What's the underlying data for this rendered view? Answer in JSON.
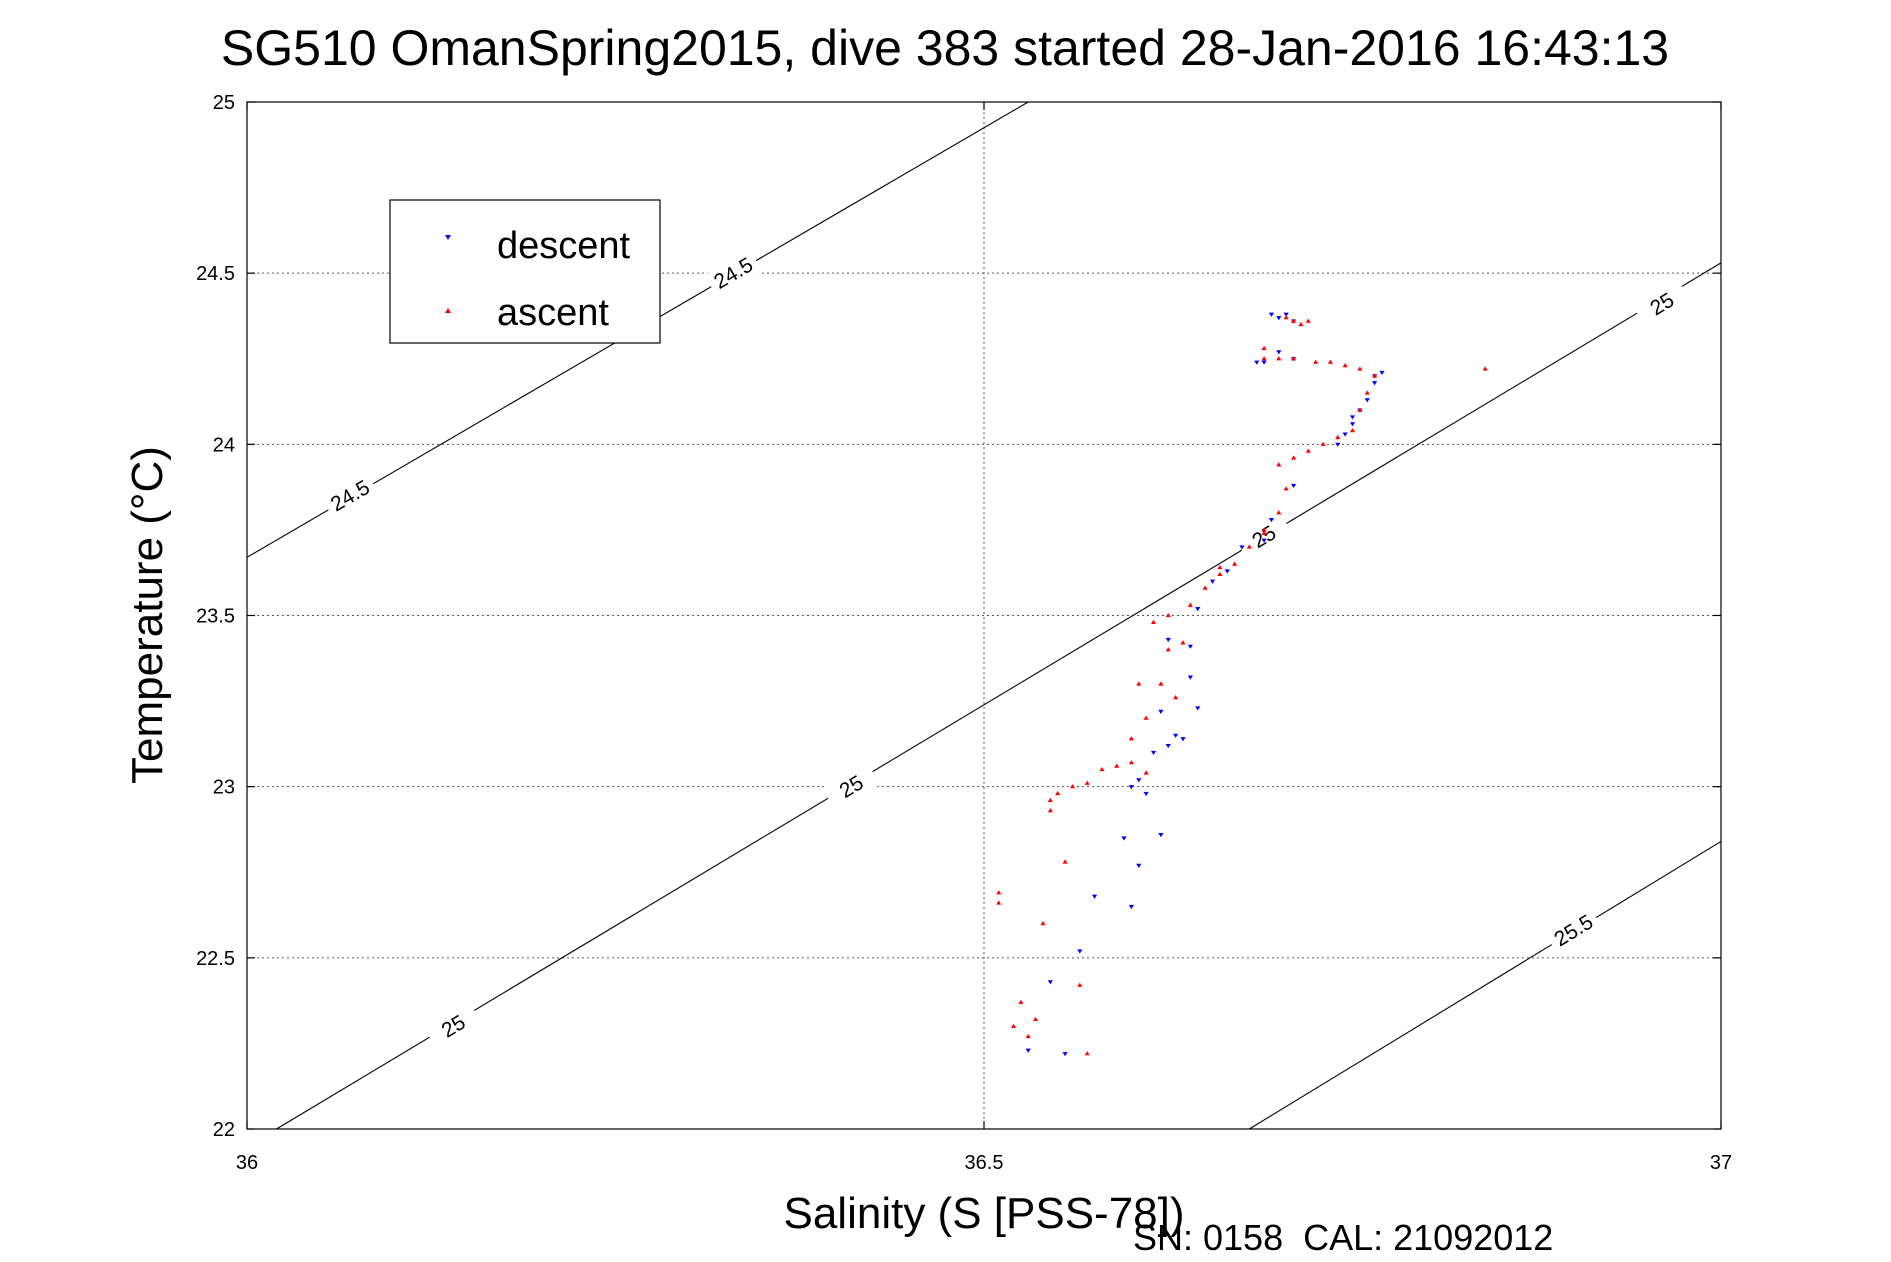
{
  "chart_data": {
    "type": "scatter",
    "title": "SG510 OmanSpring2015, dive 383 started 28-Jan-2016 16:43:13",
    "xlabel": "Salinity (S [PSS-78])",
    "ylabel": "Temperature (°C)",
    "xlim": [
      36,
      37
    ],
    "ylim": [
      22,
      25
    ],
    "x_ticks": [
      "36",
      "36.5",
      "37"
    ],
    "y_ticks": [
      "22",
      "22.5",
      "23",
      "23.5",
      "24",
      "24.5",
      "25"
    ],
    "grid": true,
    "legend_position": "top-left",
    "footer": "SN: 0158  CAL: 21092012",
    "contours": [
      {
        "label": "24.5",
        "points": [
          [
            36,
            23.67
          ],
          [
            36.53,
            25.0
          ]
        ],
        "label_at": [
          [
            36.07,
            23.85
          ],
          [
            36.33,
            24.5
          ]
        ]
      },
      {
        "label": "25",
        "points": [
          [
            36.02,
            22.0
          ],
          [
            37.0,
            24.53
          ]
        ],
        "label_at": [
          [
            36.14,
            22.3
          ],
          [
            36.41,
            23.0
          ],
          [
            36.69,
            23.73
          ],
          [
            36.96,
            24.41
          ]
        ]
      },
      {
        "label": "25.5",
        "points": [
          [
            36.68,
            22.0
          ],
          [
            37.0,
            22.84
          ]
        ],
        "label_at": [
          [
            36.9,
            22.58
          ]
        ]
      }
    ],
    "series": [
      {
        "name": "descent",
        "color": "#0000ff",
        "marker": "triangle-down",
        "points": [
          [
            36.53,
            22.23
          ],
          [
            36.555,
            22.22
          ],
          [
            36.545,
            22.43
          ],
          [
            36.565,
            22.52
          ],
          [
            36.575,
            22.68
          ],
          [
            36.6,
            22.65
          ],
          [
            36.595,
            22.85
          ],
          [
            36.605,
            22.77
          ],
          [
            36.62,
            22.86
          ],
          [
            36.61,
            22.98
          ],
          [
            36.605,
            23.02
          ],
          [
            36.6,
            23.0
          ],
          [
            36.615,
            23.1
          ],
          [
            36.625,
            23.12
          ],
          [
            36.63,
            23.15
          ],
          [
            36.635,
            23.14
          ],
          [
            36.62,
            23.22
          ],
          [
            36.645,
            23.23
          ],
          [
            36.64,
            23.32
          ],
          [
            36.64,
            23.41
          ],
          [
            36.625,
            23.43
          ],
          [
            36.645,
            23.52
          ],
          [
            36.655,
            23.6
          ],
          [
            36.665,
            23.63
          ],
          [
            36.675,
            23.7
          ],
          [
            36.69,
            23.72
          ],
          [
            36.695,
            23.78
          ],
          [
            36.71,
            23.88
          ],
          [
            36.74,
            24.0
          ],
          [
            36.745,
            24.03
          ],
          [
            36.75,
            24.06
          ],
          [
            36.755,
            24.1
          ],
          [
            36.76,
            24.13
          ],
          [
            36.765,
            24.18
          ],
          [
            36.77,
            24.21
          ],
          [
            36.765,
            24.2
          ],
          [
            36.71,
            24.25
          ],
          [
            36.7,
            24.27
          ],
          [
            36.695,
            24.38
          ],
          [
            36.7,
            24.37
          ],
          [
            36.705,
            24.38
          ],
          [
            36.71,
            24.36
          ],
          [
            36.69,
            24.24
          ],
          [
            36.685,
            24.24
          ],
          [
            36.75,
            24.08
          ]
        ]
      },
      {
        "name": "ascent",
        "color": "#ff0000",
        "marker": "triangle-up",
        "points": [
          [
            36.51,
            22.66
          ],
          [
            36.51,
            22.69
          ],
          [
            36.52,
            22.3
          ],
          [
            36.525,
            22.37
          ],
          [
            36.53,
            22.27
          ],
          [
            36.535,
            22.32
          ],
          [
            36.54,
            22.6
          ],
          [
            36.555,
            22.78
          ],
          [
            36.565,
            22.42
          ],
          [
            36.57,
            22.22
          ],
          [
            36.545,
            22.93
          ],
          [
            36.545,
            22.96
          ],
          [
            36.55,
            22.98
          ],
          [
            36.56,
            23.0
          ],
          [
            36.57,
            23.01
          ],
          [
            36.58,
            23.05
          ],
          [
            36.59,
            23.06
          ],
          [
            36.6,
            23.07
          ],
          [
            36.61,
            23.04
          ],
          [
            36.6,
            23.14
          ],
          [
            36.61,
            23.2
          ],
          [
            36.605,
            23.3
          ],
          [
            36.62,
            23.3
          ],
          [
            36.63,
            23.26
          ],
          [
            36.625,
            23.4
          ],
          [
            36.635,
            23.42
          ],
          [
            36.615,
            23.48
          ],
          [
            36.625,
            23.5
          ],
          [
            36.64,
            23.53
          ],
          [
            36.65,
            23.58
          ],
          [
            36.66,
            23.62
          ],
          [
            36.67,
            23.65
          ],
          [
            36.68,
            23.7
          ],
          [
            36.69,
            23.75
          ],
          [
            36.7,
            23.8
          ],
          [
            36.705,
            23.87
          ],
          [
            36.7,
            23.94
          ],
          [
            36.71,
            23.96
          ],
          [
            36.72,
            23.98
          ],
          [
            36.73,
            24.0
          ],
          [
            36.74,
            24.02
          ],
          [
            36.75,
            24.04
          ],
          [
            36.755,
            24.1
          ],
          [
            36.76,
            24.15
          ],
          [
            36.765,
            24.2
          ],
          [
            36.755,
            24.22
          ],
          [
            36.745,
            24.23
          ],
          [
            36.735,
            24.24
          ],
          [
            36.725,
            24.24
          ],
          [
            36.71,
            24.25
          ],
          [
            36.7,
            24.25
          ],
          [
            36.69,
            24.25
          ],
          [
            36.69,
            24.28
          ],
          [
            36.71,
            24.36
          ],
          [
            36.715,
            24.35
          ],
          [
            36.72,
            24.36
          ],
          [
            36.705,
            24.37
          ],
          [
            36.84,
            24.22
          ],
          [
            36.66,
            23.64
          ],
          [
            36.69,
            23.74
          ]
        ]
      }
    ]
  }
}
